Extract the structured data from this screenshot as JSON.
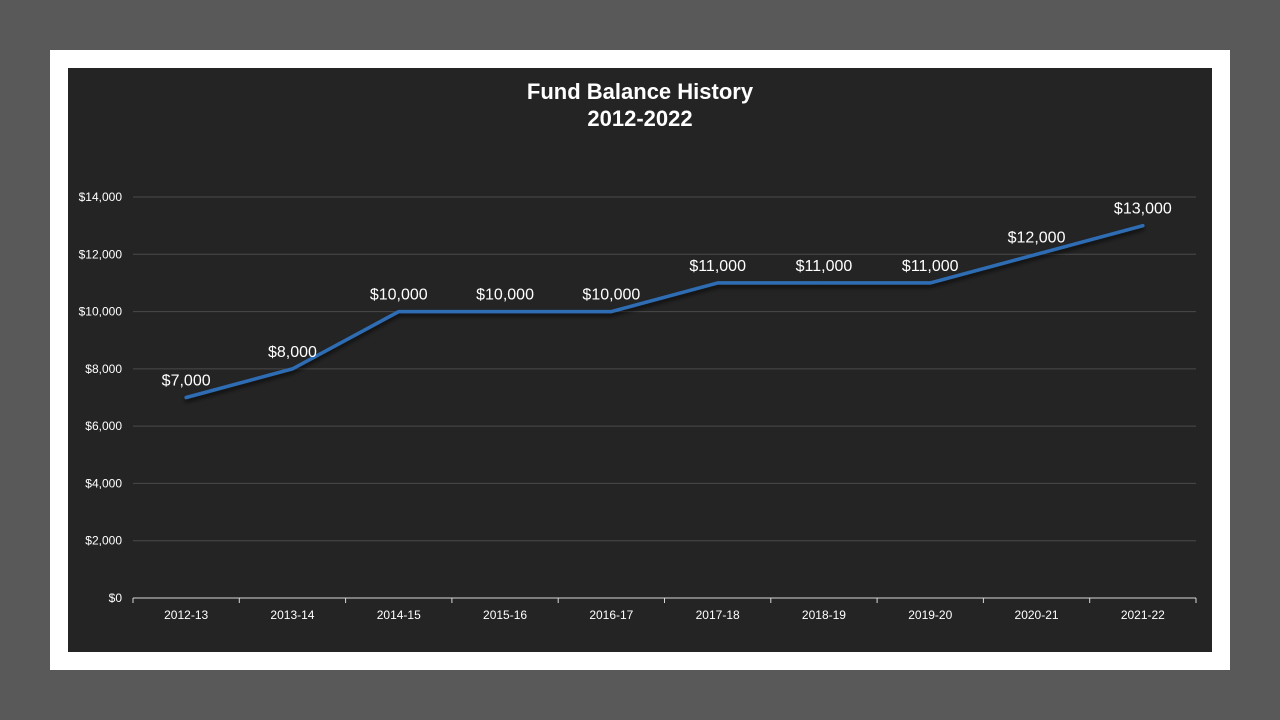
{
  "chart_data": {
    "type": "line",
    "title": "Fund Balance History",
    "subtitle": "2012-2022",
    "categories": [
      "2012-13",
      "2013-14",
      "2014-15",
      "2015-16",
      "2016-17",
      "2017-18",
      "2018-19",
      "2019-20",
      "2020-21",
      "2021-22"
    ],
    "series": [
      {
        "values": [
          7000,
          8000,
          10000,
          10000,
          10000,
          11000,
          11000,
          11000,
          12000,
          13000
        ],
        "labels": [
          "$7,000",
          "$8,000",
          "$10,000",
          "$10,000",
          "$10,000",
          "$11,000",
          "$11,000",
          "$11,000",
          "$12,000",
          "$13,000"
        ]
      }
    ],
    "yticks": [
      "$0",
      "$2,000",
      "$4,000",
      "$6,000",
      "$8,000",
      "$10,000",
      "$12,000",
      "$14,000"
    ],
    "ylim": [
      0,
      14000
    ],
    "ystep": 2000,
    "grid": true,
    "line_color": "#2e6db4",
    "xlabel": "",
    "ylabel": ""
  }
}
